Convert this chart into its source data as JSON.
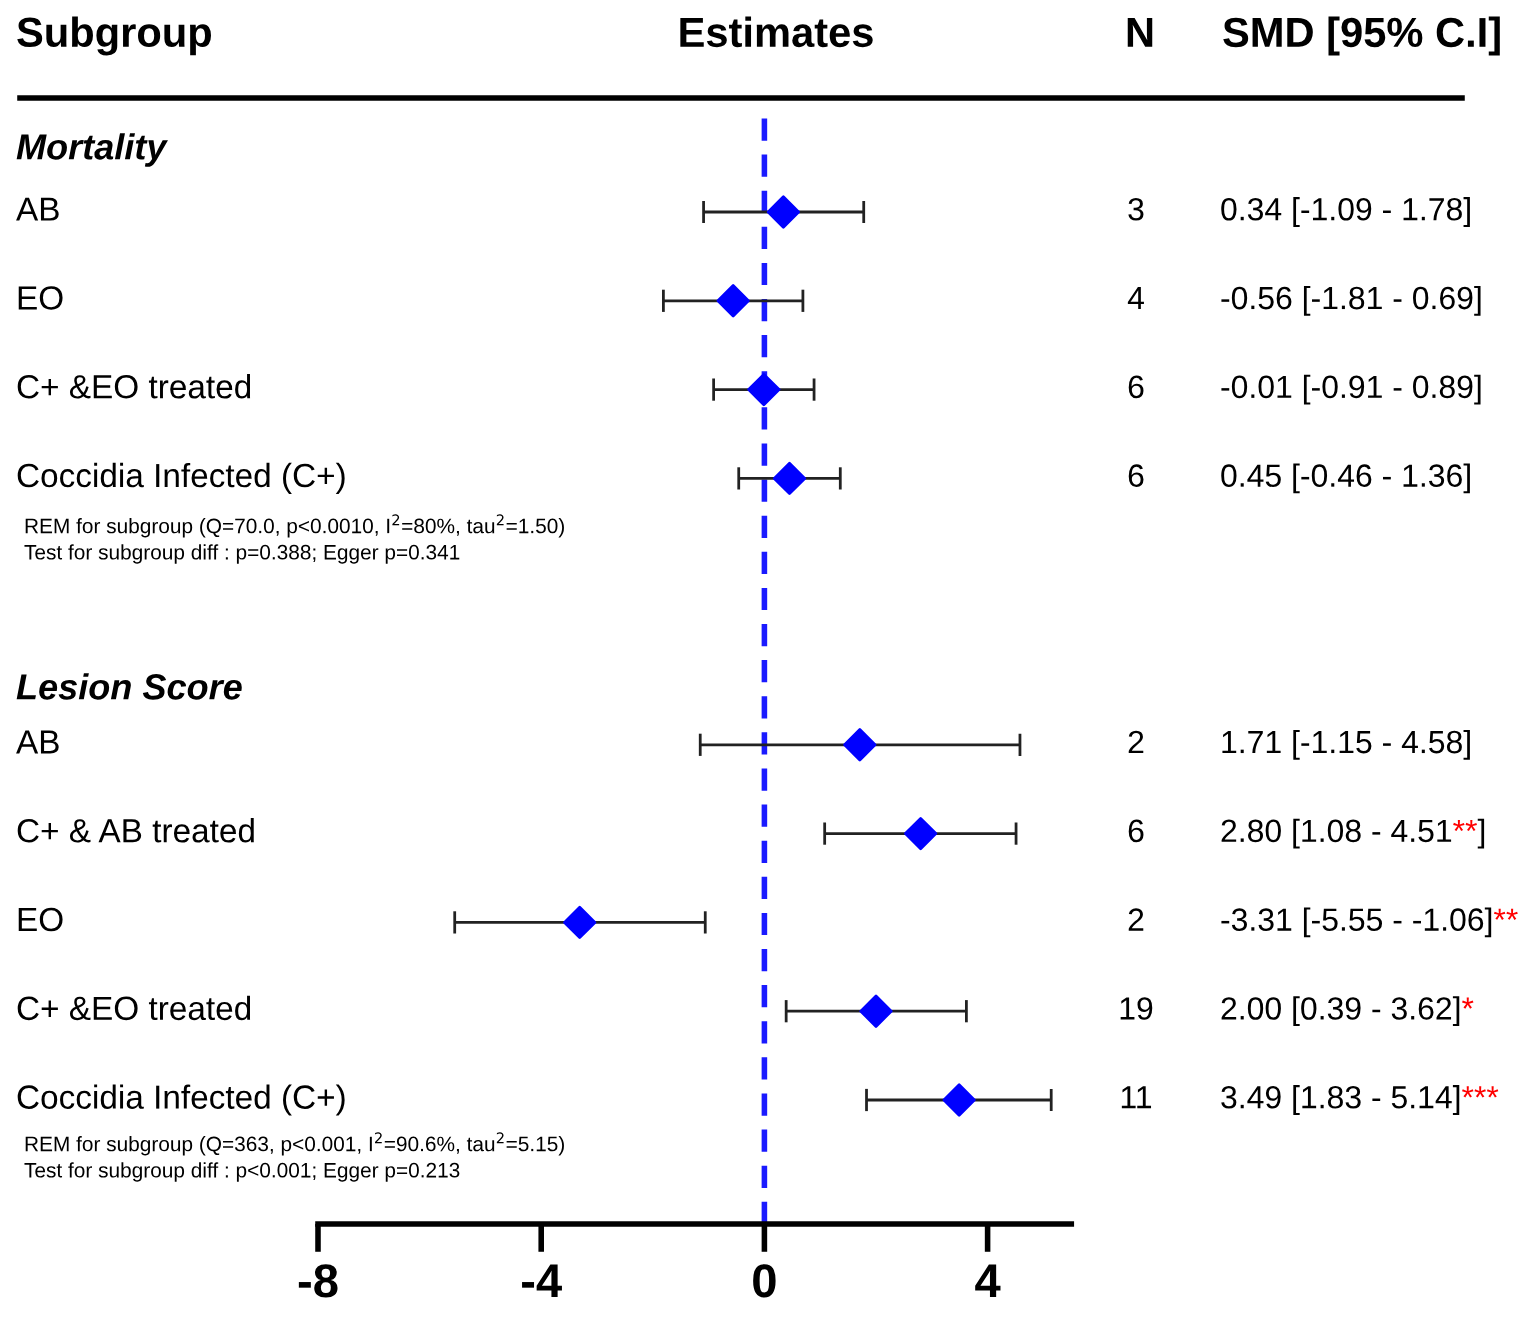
{
  "chart_data": {
    "type": "scatter",
    "orientation": "horizontal",
    "title": "Estimates",
    "categories": [
      "AB",
      "EO",
      "C+ &EO treated",
      "Coccidia Infected (C+)",
      null,
      null,
      "AB",
      "C+ & AB treated",
      "EO",
      "C+ &EO treated",
      "Coccidia Infected (C+)"
    ],
    "series": [
      {
        "color": "#0000ff",
        "values": [
          0.34,
          -0.56,
          -0.01,
          0.45,
          null,
          null,
          1.71,
          2.8,
          -3.31,
          2.0,
          3.49
        ],
        "errors": [
          [
            -1.09,
            1.78
          ],
          [
            -1.81,
            0.69
          ],
          [
            -0.91,
            0.89
          ],
          [
            -0.46,
            1.36
          ],
          null,
          null,
          [
            -1.15,
            4.58
          ],
          [
            1.08,
            4.51
          ],
          [
            -5.55,
            -1.06
          ],
          [
            0.39,
            3.62
          ],
          [
            1.83,
            5.14
          ]
        ]
      }
    ],
    "marker": "diamond",
    "xlim": [
      -8,
      5.5
    ],
    "xticks": [
      -8,
      -4,
      0,
      4
    ],
    "ref_lines": [
      {
        "axis": "x",
        "value": 0,
        "color": "#1a1aff",
        "line_style": "dashed"
      }
    ],
    "annotations": [
      "Subgroup",
      "N",
      "SMD [95% C.I]",
      "Mortality",
      "REM for subgroup (Q=70.0, p<0.0010, I$^{2}$=80%, tau$^{2}$=1.50)",
      "Test for subgroup diff : p=0.388; Egger p=0.341",
      "Lesion Score",
      "REM for subgroup (Q=363, p<0.001, I$^{2}$=90.6%, tau$^{2}$=5.15)",
      "Test for subgroup diff : p<0.001; Egger p=0.213",
      "3",
      "4",
      "6",
      "6",
      "2",
      "6",
      "2",
      "19",
      "11",
      "0.34 [-1.09 - 1.78]",
      "-0.56 [-1.81 - 0.69]",
      "-0.01 [-0.91 - 0.89]",
      "0.45 [-0.46 - 1.36]",
      "1.71 [-1.15 - 4.58]",
      "2.80 [1.08 - 4.51**]",
      "-3.31 [-5.55 - -1.06]**",
      "2.00 [0.39 - 3.62]*",
      "3.49 [1.83 - 5.14]***"
    ],
    "grid": false,
    "legend": false
  }
}
